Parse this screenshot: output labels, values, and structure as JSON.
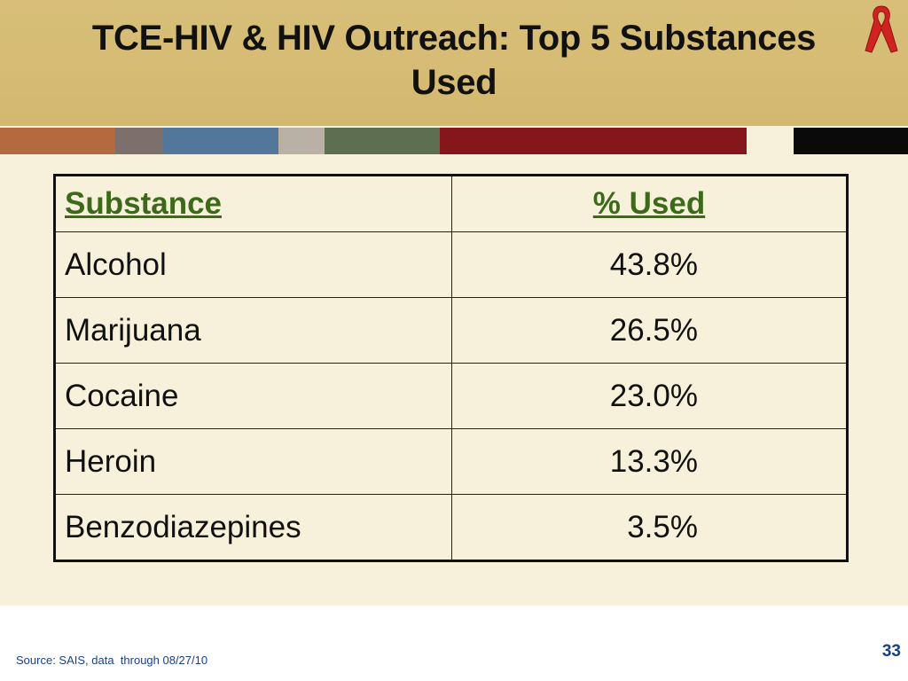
{
  "slide": {
    "title_line1": "TCE-HIV & HIV Outreach: Top 5 Substances",
    "title_line2": "Used",
    "ribbon_icon": "red-ribbon-icon",
    "stripe_colors": [
      "#b46a3f",
      "#7d6f6c",
      "#52779a",
      "#b9b1a5",
      "#5e6e50",
      "#85161b",
      "#f7f1dc",
      "#0a0a0a"
    ]
  },
  "table": {
    "headers": [
      "Substance",
      "% Used"
    ],
    "rows": [
      {
        "substance": "Alcohol",
        "pct": "43.8%"
      },
      {
        "substance": "Marijuana",
        "pct": "26.5%"
      },
      {
        "substance": "Cocaine",
        "pct": "23.0%"
      },
      {
        "substance": "Heroin",
        "pct": "13.3%"
      },
      {
        "substance": "Benzodiazepines",
        "pct": "3.5%"
      }
    ]
  },
  "footer": {
    "source": "Source: SAIS, data  through 08/27/10",
    "page_number": "33"
  }
}
